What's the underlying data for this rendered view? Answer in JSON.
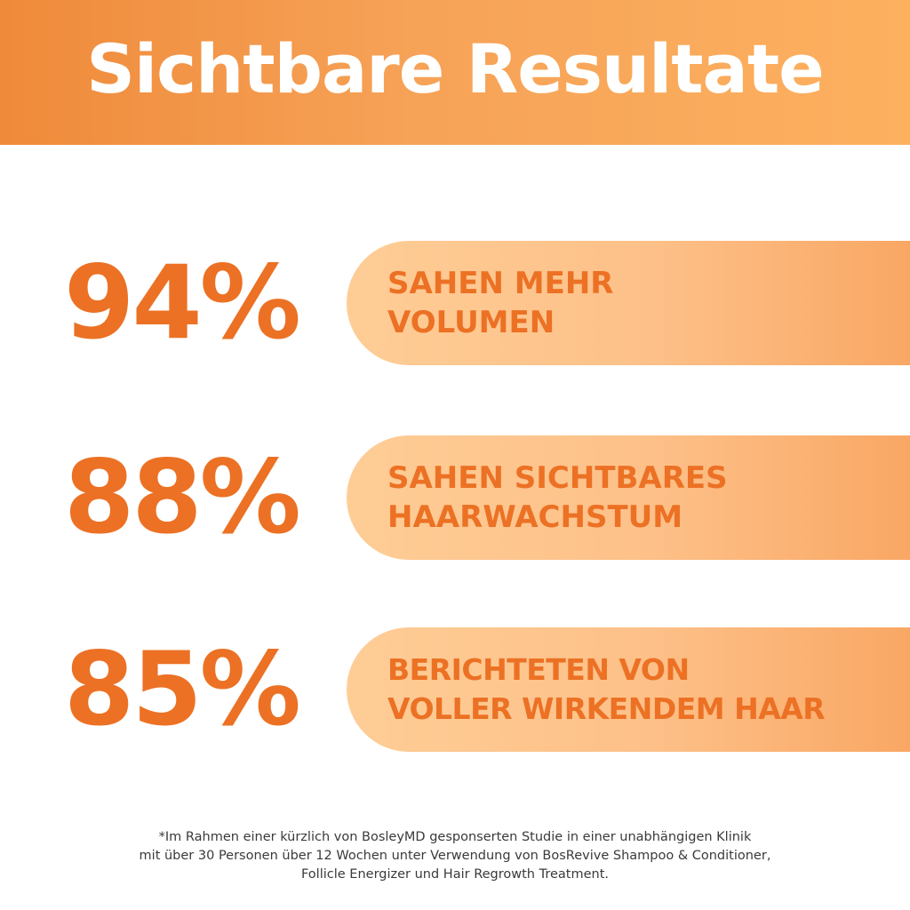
{
  "header": {
    "title": "Sichtbare Resultate"
  },
  "stats": [
    {
      "value": "94%",
      "lines": [
        "SAHEN MEHR",
        "VOLUMEN"
      ]
    },
    {
      "value": "88%",
      "lines": [
        "SAHEN SICHTBARES",
        "HAARWACHSTUM"
      ]
    },
    {
      "value": "85%",
      "lines": [
        "BERICHTETEN VON",
        "VOLLER WIRKENDEM HAAR"
      ]
    }
  ],
  "footnote": {
    "lines": [
      "*Im Rahmen einer kürzlich von BosleyMD gesponserten Studie in einer unabhängigen Klinik",
      "mit über 30 Personen über 12 Wochen unter Verwendung von BosRevive Shampoo & Conditioner,",
      "Follicle Energizer und Hair Regrowth Treatment."
    ]
  },
  "colors": {
    "accent": "#ec7124",
    "header_start": "#ef8a3a",
    "header_end": "#fdb15f",
    "pill_light": "#fecd96",
    "pill_dark": "#f9a764"
  }
}
